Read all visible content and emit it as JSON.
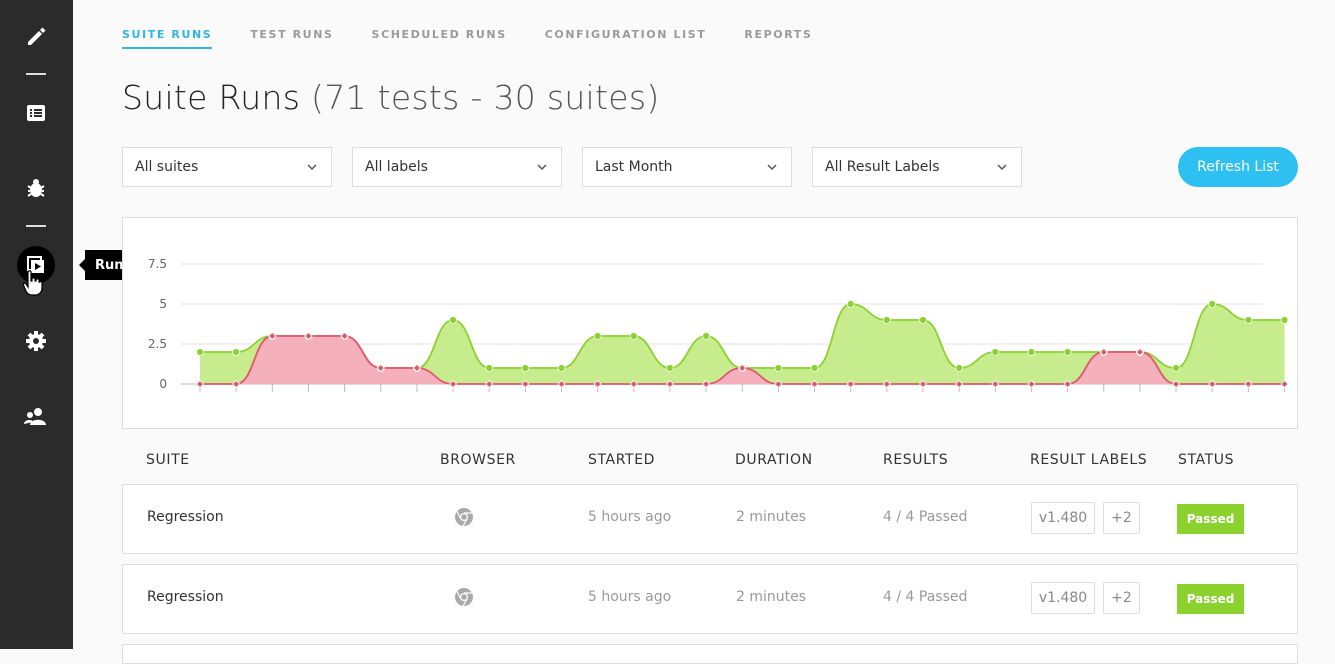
{
  "sidebar": {
    "items": [
      {
        "icon": "pencil-icon"
      },
      {
        "icon": "list-icon"
      },
      {
        "icon": "bug-icon"
      },
      {
        "icon": "runs-icon",
        "active": true
      },
      {
        "icon": "gear-icon"
      },
      {
        "icon": "team-icon"
      }
    ],
    "tooltip": "Runs"
  },
  "tabs": [
    {
      "label": "SUITE RUNS",
      "active": true
    },
    {
      "label": "TEST RUNS"
    },
    {
      "label": "SCHEDULED RUNS"
    },
    {
      "label": "CONFIGURATION LIST"
    },
    {
      "label": "REPORTS"
    }
  ],
  "page": {
    "title": "Suite Runs",
    "subtitle": "(71 tests - 30 suites)"
  },
  "filters": {
    "suites": "All suites",
    "labels": "All labels",
    "period": "Last Month",
    "result_labels": "All Result Labels"
  },
  "refresh_label": "Refresh List",
  "chart_data": {
    "type": "area",
    "y_ticks": [
      "7.5",
      "5",
      "2.5",
      "0"
    ],
    "ylim": [
      0,
      7.5
    ],
    "grid": true,
    "series": [
      {
        "color": "#8bd22f",
        "fill": "#c7ec8e",
        "values": [
          2,
          2,
          3,
          3,
          3,
          1,
          1,
          4,
          1,
          1,
          1,
          3,
          3,
          1,
          3,
          1,
          1,
          1,
          5,
          4,
          4,
          1,
          2,
          2,
          2,
          2,
          2,
          1,
          5,
          4,
          4
        ]
      },
      {
        "color": "#e0566e",
        "fill": "#f4b0bb",
        "values": [
          0,
          0,
          3,
          3,
          3,
          1,
          1,
          0,
          0,
          0,
          0,
          0,
          0,
          0,
          0,
          1,
          0,
          0,
          0,
          0,
          0,
          0,
          0,
          0,
          0,
          2,
          2,
          0,
          0,
          0,
          0
        ]
      }
    ]
  },
  "table": {
    "headers": {
      "suite": "SUITE",
      "browser": "BROWSER",
      "started": "STARTED",
      "duration": "DURATION",
      "results": "RESULTS",
      "result_labels": "RESULT LABELS",
      "status": "STATUS"
    },
    "rows": [
      {
        "suite": "Regression",
        "browser": "chrome-icon",
        "started": "5 hours ago",
        "duration": "2 minutes",
        "results": "4 / 4 Passed",
        "label": "v1.480",
        "more": "+2",
        "status": "Passed"
      },
      {
        "suite": "Regression",
        "browser": "chrome-icon",
        "started": "5 hours ago",
        "duration": "2 minutes",
        "results": "4 / 4 Passed",
        "label": "v1.480",
        "more": "+2",
        "status": "Passed"
      }
    ]
  },
  "colors": {
    "accent": "#2fb5e8",
    "passed": "#8bd22f",
    "failed": "#e0566e",
    "sidebar": "#2b2b2b"
  }
}
